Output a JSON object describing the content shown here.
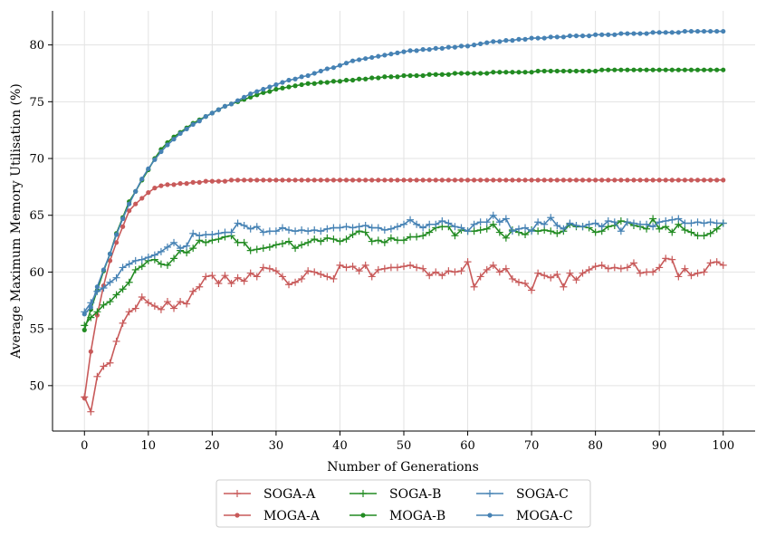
{
  "chart_data": {
    "type": "line",
    "title": "",
    "xlabel": "Number of Generations",
    "ylabel": "Average Maximum Memory Utilisation (%)",
    "xlim": [
      -5,
      105
    ],
    "ylim": [
      46,
      83
    ],
    "xticks": [
      0,
      10,
      20,
      30,
      40,
      50,
      60,
      70,
      80,
      90,
      100
    ],
    "yticks": [
      50,
      55,
      60,
      65,
      70,
      75,
      80
    ],
    "grid": true,
    "legend_position": "bottom-center",
    "series": [
      {
        "name": "SOGA-A",
        "color": "#c85a5a",
        "marker": "plus",
        "values": [
          49.0,
          47.7,
          50.8,
          51.7,
          52.0,
          53.9,
          55.5,
          56.5,
          56.8,
          57.8,
          57.3,
          57.0,
          56.7,
          57.4,
          56.8,
          57.4,
          57.2,
          58.3,
          58.7,
          59.6,
          59.7,
          59.0,
          59.7,
          59.0,
          59.5,
          59.2,
          59.9,
          59.6,
          60.4,
          60.3,
          60.1,
          59.6,
          58.9,
          59.1,
          59.4,
          60.1,
          60.0,
          59.8,
          59.6,
          59.4,
          60.6,
          60.4,
          60.5,
          60.1,
          60.6,
          59.6,
          60.2,
          60.3,
          60.4,
          60.4,
          60.5,
          60.6,
          60.4,
          60.3,
          59.7,
          60.0,
          59.7,
          60.1,
          60.0,
          60.1,
          60.9,
          58.7,
          59.6,
          60.2,
          60.6,
          60.0,
          60.3,
          59.4,
          59.1,
          59.0,
          58.4,
          59.9,
          59.7,
          59.5,
          59.8,
          58.7,
          59.9,
          59.3,
          59.9,
          60.2,
          60.5,
          60.6,
          60.3,
          60.4,
          60.3,
          60.4,
          60.8,
          59.9,
          60.0,
          60.0,
          60.4,
          61.2,
          61.1,
          59.6,
          60.3,
          59.7,
          59.9,
          60.0,
          60.8,
          60.9,
          60.6
        ]
      },
      {
        "name": "MOGA-A",
        "color": "#c85a5a",
        "marker": "dot",
        "values": [
          48.9,
          53.0,
          56.2,
          58.8,
          61.0,
          62.6,
          64.0,
          65.4,
          66.0,
          66.5,
          67.0,
          67.4,
          67.6,
          67.7,
          67.7,
          67.8,
          67.8,
          67.9,
          67.9,
          68.0,
          68.0,
          68.0,
          68.0,
          68.1,
          68.1,
          68.1,
          68.1,
          68.1,
          68.1,
          68.1,
          68.1,
          68.1,
          68.1,
          68.1,
          68.1,
          68.1,
          68.1,
          68.1,
          68.1,
          68.1,
          68.1,
          68.1,
          68.1,
          68.1,
          68.1,
          68.1,
          68.1,
          68.1,
          68.1,
          68.1,
          68.1,
          68.1,
          68.1,
          68.1,
          68.1,
          68.1,
          68.1,
          68.1,
          68.1,
          68.1,
          68.1,
          68.1,
          68.1,
          68.1,
          68.1,
          68.1,
          68.1,
          68.1,
          68.1,
          68.1,
          68.1,
          68.1,
          68.1,
          68.1,
          68.1,
          68.1,
          68.1,
          68.1,
          68.1,
          68.1,
          68.1,
          68.1,
          68.1,
          68.1,
          68.1,
          68.1,
          68.1,
          68.1,
          68.1,
          68.1,
          68.1,
          68.1,
          68.1,
          68.1,
          68.1,
          68.1,
          68.1,
          68.1,
          68.1,
          68.1,
          68.1
        ]
      },
      {
        "name": "SOGA-B",
        "color": "#228b22",
        "marker": "plus",
        "values": [
          55.3,
          56.0,
          56.5,
          57.1,
          57.4,
          58.0,
          58.5,
          59.1,
          60.2,
          60.5,
          61.0,
          61.1,
          60.7,
          60.6,
          61.2,
          61.9,
          61.7,
          62.1,
          62.8,
          62.6,
          62.8,
          62.9,
          63.1,
          63.2,
          62.6,
          62.6,
          61.9,
          62.0,
          62.1,
          62.2,
          62.4,
          62.5,
          62.7,
          62.1,
          62.4,
          62.6,
          62.9,
          62.7,
          63.0,
          62.9,
          62.7,
          62.9,
          63.3,
          63.6,
          63.5,
          62.7,
          62.8,
          62.6,
          63.0,
          62.8,
          62.8,
          63.1,
          63.1,
          63.2,
          63.5,
          63.9,
          64.0,
          64.0,
          63.2,
          63.7,
          63.6,
          63.6,
          63.7,
          63.8,
          64.2,
          63.5,
          63.0,
          63.7,
          63.5,
          63.3,
          63.7,
          63.6,
          63.7,
          63.6,
          63.4,
          63.6,
          64.2,
          64.0,
          64.0,
          63.9,
          63.5,
          63.6,
          64.0,
          64.1,
          64.5,
          64.4,
          64.1,
          64.0,
          63.8,
          64.7,
          63.8,
          64.0,
          63.5,
          64.2,
          63.7,
          63.5,
          63.2,
          63.2,
          63.4,
          63.8,
          64.3
        ]
      },
      {
        "name": "MOGA-B",
        "color": "#228b22",
        "marker": "dot",
        "values": [
          54.9,
          56.7,
          58.4,
          60.1,
          61.6,
          63.4,
          64.8,
          66.2,
          67.1,
          68.1,
          69.0,
          70.0,
          70.8,
          71.4,
          71.9,
          72.3,
          72.7,
          73.1,
          73.4,
          73.7,
          74.0,
          74.3,
          74.6,
          74.8,
          75.0,
          75.2,
          75.4,
          75.6,
          75.8,
          75.9,
          76.1,
          76.2,
          76.3,
          76.4,
          76.5,
          76.6,
          76.6,
          76.7,
          76.7,
          76.8,
          76.8,
          76.9,
          76.9,
          77.0,
          77.0,
          77.1,
          77.1,
          77.2,
          77.2,
          77.2,
          77.3,
          77.3,
          77.3,
          77.3,
          77.4,
          77.4,
          77.4,
          77.4,
          77.5,
          77.5,
          77.5,
          77.5,
          77.5,
          77.5,
          77.6,
          77.6,
          77.6,
          77.6,
          77.6,
          77.6,
          77.6,
          77.7,
          77.7,
          77.7,
          77.7,
          77.7,
          77.7,
          77.7,
          77.7,
          77.7,
          77.7,
          77.8,
          77.8,
          77.8,
          77.8,
          77.8,
          77.8,
          77.8,
          77.8,
          77.8,
          77.8,
          77.8,
          77.8,
          77.8,
          77.8,
          77.8,
          77.8,
          77.8,
          77.8,
          77.8,
          77.8
        ]
      },
      {
        "name": "SOGA-C",
        "color": "#4682b4",
        "marker": "plus",
        "values": [
          56.5,
          57.3,
          58.3,
          58.6,
          59.1,
          59.5,
          60.4,
          60.7,
          61.0,
          61.1,
          61.3,
          61.5,
          61.8,
          62.2,
          62.6,
          62.1,
          62.3,
          63.4,
          63.2,
          63.3,
          63.3,
          63.4,
          63.5,
          63.5,
          64.3,
          64.1,
          63.8,
          64.0,
          63.5,
          63.6,
          63.6,
          63.9,
          63.7,
          63.6,
          63.7,
          63.6,
          63.7,
          63.6,
          63.8,
          63.9,
          63.9,
          64.0,
          63.9,
          64.0,
          64.1,
          63.9,
          63.9,
          63.7,
          63.8,
          64.0,
          64.2,
          64.6,
          64.2,
          63.9,
          64.2,
          64.2,
          64.5,
          64.3,
          64.0,
          63.9,
          63.6,
          64.2,
          64.4,
          64.4,
          65.0,
          64.4,
          64.7,
          63.6,
          63.8,
          63.9,
          63.6,
          64.4,
          64.2,
          64.8,
          64.1,
          63.8,
          64.3,
          64.1,
          64.0,
          64.2,
          64.3,
          64.0,
          64.5,
          64.4,
          63.6,
          64.4,
          64.3,
          64.2,
          64.2,
          64.0,
          64.4,
          64.5,
          64.6,
          64.7,
          64.3,
          64.3,
          64.4,
          64.3,
          64.4,
          64.3,
          64.3
        ]
      },
      {
        "name": "MOGA-C",
        "color": "#4682b4",
        "marker": "dot",
        "values": [
          56.3,
          56.9,
          58.7,
          60.2,
          61.6,
          63.3,
          64.7,
          66.0,
          67.1,
          68.2,
          69.1,
          69.9,
          70.6,
          71.2,
          71.7,
          72.2,
          72.6,
          73.0,
          73.3,
          73.7,
          74.0,
          74.3,
          74.6,
          74.8,
          75.1,
          75.4,
          75.7,
          75.9,
          76.1,
          76.3,
          76.5,
          76.7,
          76.9,
          77.0,
          77.2,
          77.3,
          77.5,
          77.7,
          77.9,
          78.0,
          78.2,
          78.4,
          78.6,
          78.7,
          78.8,
          78.9,
          79.0,
          79.1,
          79.2,
          79.3,
          79.4,
          79.5,
          79.5,
          79.6,
          79.6,
          79.7,
          79.7,
          79.8,
          79.8,
          79.9,
          79.9,
          80.0,
          80.1,
          80.2,
          80.3,
          80.3,
          80.4,
          80.4,
          80.5,
          80.5,
          80.6,
          80.6,
          80.6,
          80.7,
          80.7,
          80.7,
          80.8,
          80.8,
          80.8,
          80.8,
          80.9,
          80.9,
          80.9,
          80.9,
          81.0,
          81.0,
          81.0,
          81.0,
          81.0,
          81.1,
          81.1,
          81.1,
          81.1,
          81.1,
          81.2,
          81.2,
          81.2,
          81.2,
          81.2,
          81.2,
          81.2
        ]
      }
    ]
  }
}
